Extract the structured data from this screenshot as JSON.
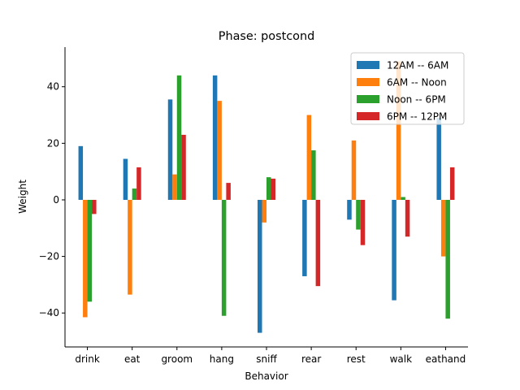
{
  "chart_data": {
    "type": "bar",
    "title": "Phase: postcond",
    "xlabel": "Behavior",
    "ylabel": "Weight",
    "ylim": [
      -52,
      54
    ],
    "yticks": [
      -40,
      -20,
      0,
      20,
      40
    ],
    "legend_position": "upper-right",
    "categories": [
      "drink",
      "eat",
      "groom",
      "hang",
      "sniff",
      "rear",
      "rest",
      "walk",
      "eathand"
    ],
    "series": [
      {
        "name": "12AM -- 6AM",
        "color": "#1f77b4",
        "values": [
          19,
          14.5,
          35.5,
          44,
          -47,
          -27,
          -7,
          -35.5,
          29
        ]
      },
      {
        "name": "6AM -- Noon",
        "color": "#ff7f0e",
        "values": [
          -41.5,
          -33.5,
          9,
          35,
          -8,
          30,
          21,
          49,
          -20
        ]
      },
      {
        "name": "Noon -- 6PM",
        "color": "#2ca02c",
        "values": [
          -36,
          4,
          44,
          -41,
          8,
          17.5,
          -10.5,
          1,
          -42
        ]
      },
      {
        "name": "6PM -- 12PM",
        "color": "#d62728",
        "values": [
          -5,
          11.5,
          23,
          6,
          7.5,
          -30.5,
          -16,
          -13,
          11.5
        ]
      }
    ]
  }
}
